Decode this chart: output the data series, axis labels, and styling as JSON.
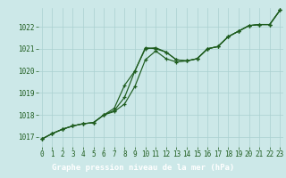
{
  "title": "Graphe pression niveau de la mer (hPa)",
  "x_values": [
    0,
    1,
    2,
    3,
    4,
    5,
    6,
    7,
    8,
    9,
    10,
    11,
    12,
    13,
    14,
    15,
    16,
    17,
    18,
    19,
    20,
    21,
    22,
    23
  ],
  "series1": [
    1016.9,
    1017.15,
    1017.35,
    1017.5,
    1017.6,
    1017.65,
    1018.0,
    1018.15,
    1018.5,
    1019.3,
    1020.5,
    1020.9,
    1020.55,
    1020.4,
    1020.45,
    1020.55,
    1021.0,
    1021.1,
    1021.55,
    1021.8,
    1022.05,
    1022.1,
    1022.1,
    1022.75
  ],
  "series2": [
    1016.9,
    1017.15,
    1017.35,
    1017.5,
    1017.6,
    1017.65,
    1018.0,
    1018.2,
    1018.8,
    1020.0,
    1021.0,
    1021.05,
    1020.85,
    1020.5,
    1020.45,
    1020.55,
    1021.0,
    1021.1,
    1021.55,
    1021.8,
    1022.05,
    1022.1,
    1022.1,
    1022.75
  ],
  "series3": [
    1016.9,
    1017.15,
    1017.35,
    1017.5,
    1017.6,
    1017.65,
    1018.0,
    1018.3,
    1019.35,
    1020.0,
    1021.05,
    1021.0,
    1020.85,
    1020.5,
    1020.45,
    1020.55,
    1021.0,
    1021.1,
    1021.55,
    1021.8,
    1022.05,
    1022.1,
    1022.1,
    1022.75
  ],
  "ylim": [
    1016.55,
    1022.85
  ],
  "yticks": [
    1017,
    1018,
    1019,
    1020,
    1021,
    1022
  ],
  "xlim": [
    -0.3,
    23.3
  ],
  "xticks": [
    0,
    1,
    2,
    3,
    4,
    5,
    6,
    7,
    8,
    9,
    10,
    11,
    12,
    13,
    14,
    15,
    16,
    17,
    18,
    19,
    20,
    21,
    22,
    23
  ],
  "line_color": "#1e5c1e",
  "marker": "+",
  "bg_color": "#cce8e8",
  "grid_color": "#aad0d0",
  "title_bg_color": "#2a6e2a",
  "title_text_color": "#ffffff",
  "title_fontsize": 6.5,
  "tick_fontsize": 5.5,
  "ytick_fontsize": 5.5,
  "marker_size": 3.5,
  "line_width": 0.85
}
